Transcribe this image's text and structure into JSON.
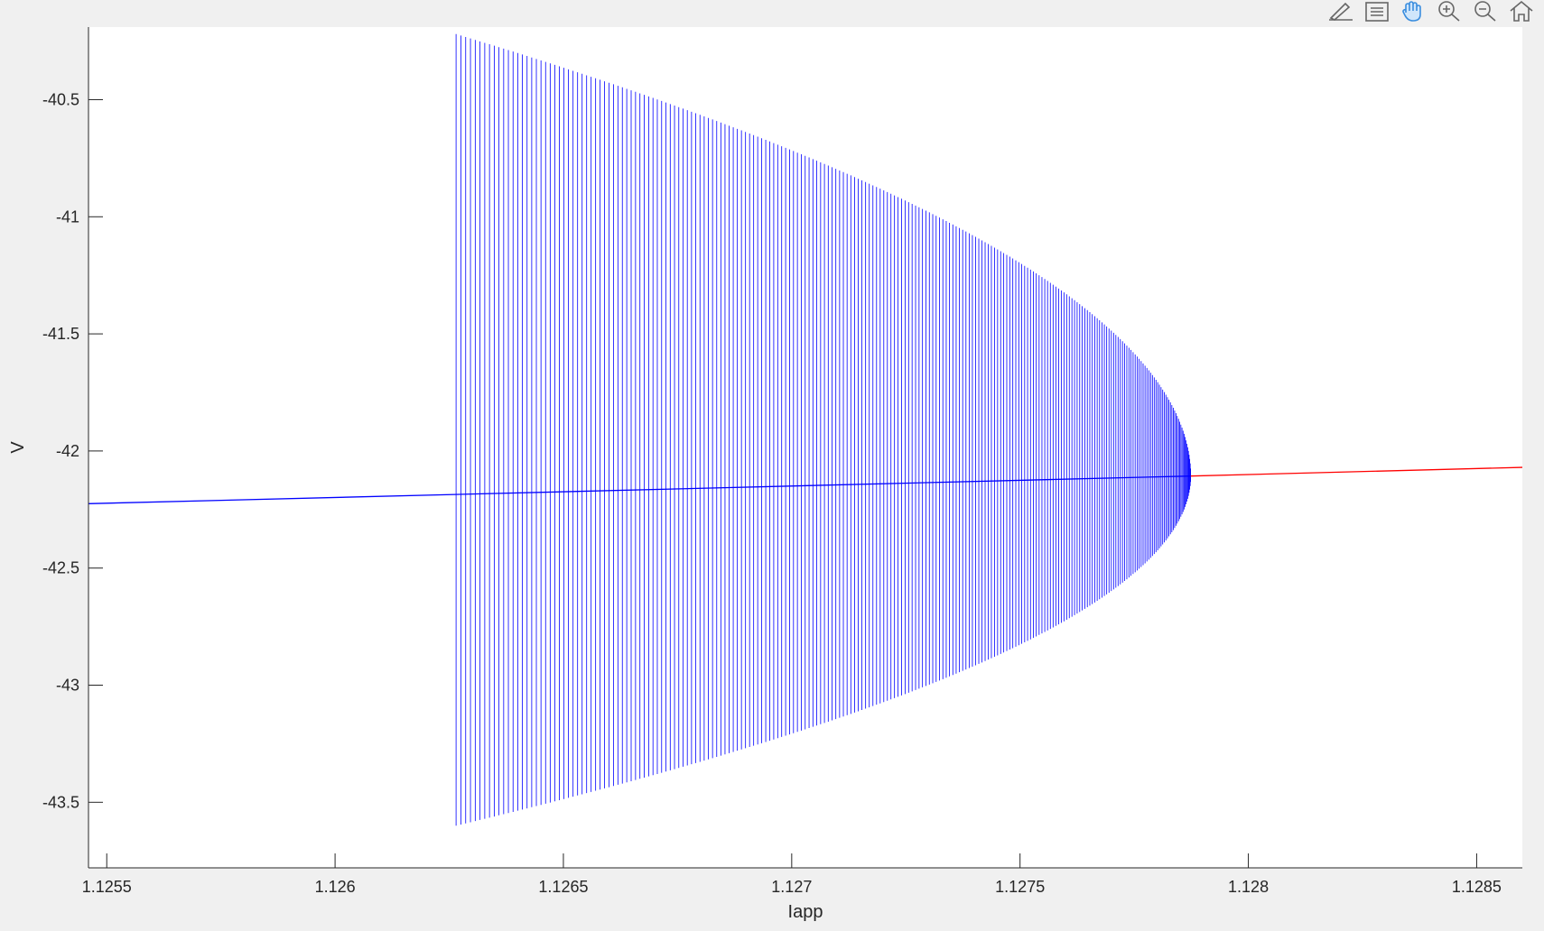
{
  "toolbar": {
    "icons": [
      "brush-icon",
      "legend-icon",
      "pan-hand-icon",
      "zoom-in-icon",
      "zoom-out-icon",
      "home-icon"
    ]
  },
  "chart_data": {
    "type": "line",
    "title": "",
    "xlabel": "Iapp",
    "ylabel": "V",
    "xlim": [
      1.12546,
      1.1286
    ],
    "ylim": [
      -43.78,
      -40.19
    ],
    "xticks": [
      1.1255,
      1.126,
      1.1265,
      1.127,
      1.1275,
      1.128,
      1.1285
    ],
    "xtick_labels": [
      "1.1255",
      "1.126",
      "1.1265",
      "1.127",
      "1.1275",
      "1.128",
      "1.1285"
    ],
    "yticks": [
      -40.5,
      -41,
      -41.5,
      -42,
      -42.5,
      -43,
      -43.5
    ],
    "ytick_labels": [
      "-40.5",
      "-41",
      "-41.5",
      "-42",
      "-42.5",
      "-43",
      "-43.5"
    ],
    "grid": false,
    "series": [
      {
        "style": "stable-equilibrium",
        "color": "#0000ff",
        "x": [
          1.12546,
          1.127874
        ],
        "y": [
          -42.225,
          -42.107
        ]
      },
      {
        "style": "unstable-equilibrium",
        "color": "#ff0000",
        "x": [
          1.127874,
          1.1286
        ],
        "y": [
          -42.107,
          -42.07
        ]
      },
      {
        "style": "periodic-orbit-envelope",
        "color": "#0000ff",
        "x_range": [
          1.126265,
          1.127874
        ],
        "vmax_at_start": -40.22,
        "vmin_at_start": -43.6,
        "v_center_at_end": -42.107,
        "line_count": 230
      }
    ]
  }
}
